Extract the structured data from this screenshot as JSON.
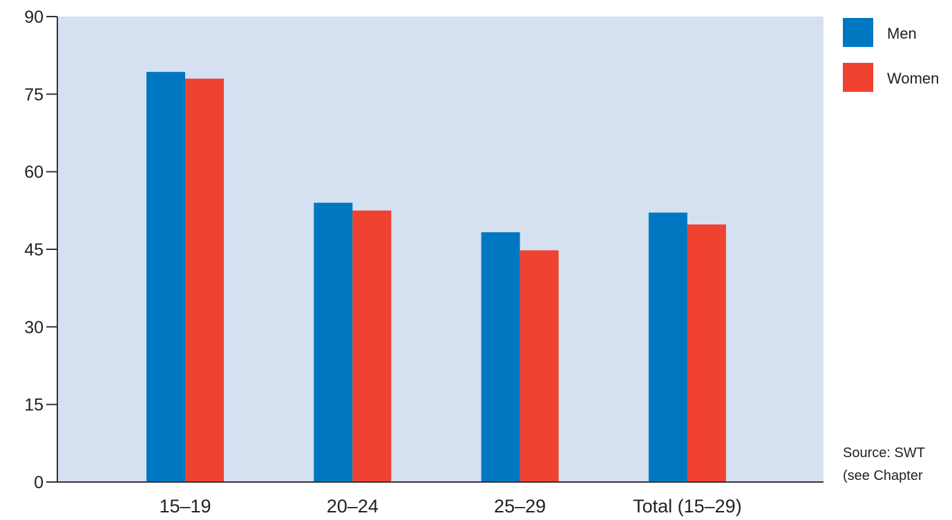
{
  "chart_data": {
    "type": "bar",
    "categories": [
      "15–19",
      "20–24",
      "25–29",
      "Total (15–29)"
    ],
    "series": [
      {
        "name": "Men",
        "color": "#0078c1",
        "values": [
          79.3,
          54.0,
          48.3,
          52.1
        ]
      },
      {
        "name": "Women",
        "color": "#ef4230",
        "values": [
          78.0,
          52.5,
          44.8,
          49.8
        ]
      }
    ],
    "y_ticks": [
      "0",
      "15",
      "30",
      "45",
      "60",
      "75",
      "90"
    ],
    "ylim": [
      0,
      90
    ],
    "grid": false,
    "plot_background": "#d5e0f1",
    "legend_position": "right-top",
    "source_lines": [
      "Source: SWT",
      "(see Chapter"
    ]
  }
}
